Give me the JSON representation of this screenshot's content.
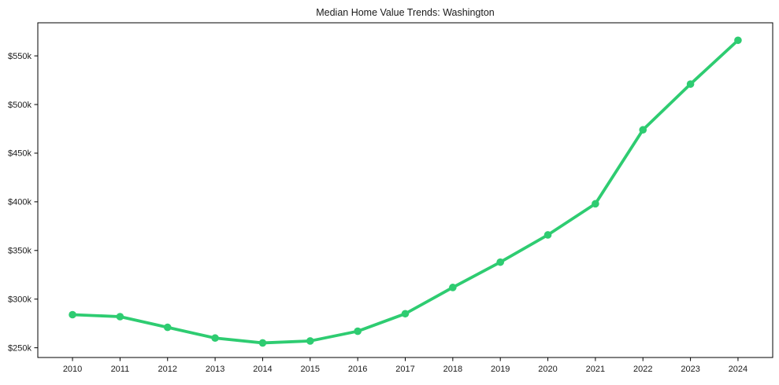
{
  "chart_data": {
    "type": "line",
    "title": "Median Home Value Trends: Washington",
    "x": [
      2010,
      2011,
      2012,
      2013,
      2014,
      2015,
      2016,
      2017,
      2018,
      2019,
      2020,
      2021,
      2022,
      2023,
      2024
    ],
    "xtick_labels": [
      "2010",
      "2011",
      "2012",
      "2013",
      "2014",
      "2015",
      "2016",
      "2017",
      "2018",
      "2019",
      "2020",
      "2021",
      "2022",
      "2023",
      "2024"
    ],
    "yticks": [
      {
        "value": 250,
        "label": "$250k"
      },
      {
        "value": 300,
        "label": "$300k"
      },
      {
        "value": 350,
        "label": "$350k"
      },
      {
        "value": 400,
        "label": "$400k"
      },
      {
        "value": 450,
        "label": "$450k"
      },
      {
        "value": 500,
        "label": "$500k"
      },
      {
        "value": 550,
        "label": "$550k"
      }
    ],
    "series": [
      {
        "name": "Median Home Value",
        "color": "#2ecc71",
        "values": [
          284,
          282,
          271,
          260,
          255,
          257,
          267,
          285,
          312,
          338,
          366,
          398,
          474,
          521,
          566
        ]
      }
    ],
    "unit": "USD thousands",
    "xlabel": "",
    "ylabel": "",
    "xlim": [
      2009.27,
      2024.73
    ],
    "ylim": [
      240,
      584
    ],
    "grid": false,
    "legend_position": "none",
    "marker": "circle",
    "frame_color": "#000000",
    "text_color": "#1a1a1a",
    "background": "#ffffff"
  },
  "layout_note": "single line chart, no legend, no gridlines"
}
